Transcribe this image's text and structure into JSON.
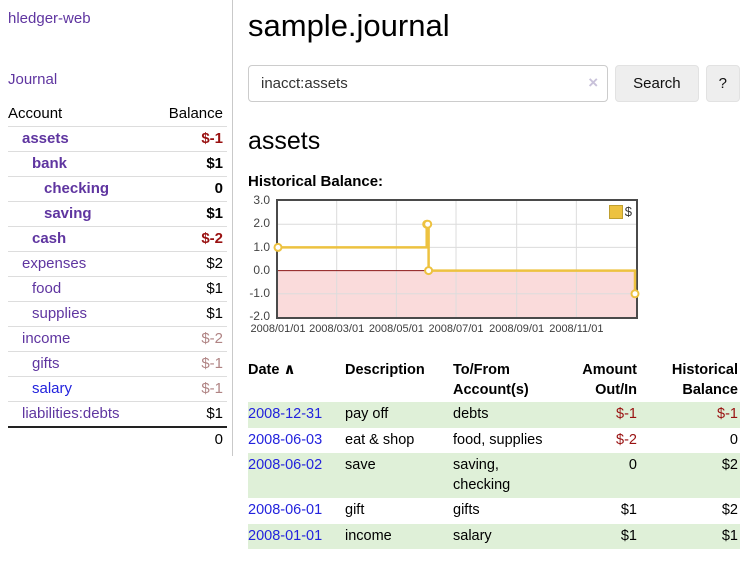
{
  "sidebar": {
    "app_title": "hledger-web",
    "journal_link": "Journal",
    "table": {
      "account_header": "Account",
      "balance_header": "Balance",
      "rows": [
        {
          "account": "assets",
          "balance": "$-1",
          "level": 0,
          "bold": true,
          "neg": "strong",
          "blue": false
        },
        {
          "account": "bank",
          "balance": "$1",
          "level": 1,
          "bold": true,
          "neg": "",
          "blue": false
        },
        {
          "account": "checking",
          "balance": "0",
          "level": 2,
          "bold": true,
          "neg": "",
          "blue": false
        },
        {
          "account": "saving",
          "balance": "$1",
          "level": 2,
          "bold": true,
          "neg": "",
          "blue": false
        },
        {
          "account": "cash",
          "balance": "$-2",
          "level": 1,
          "bold": true,
          "neg": "strong",
          "blue": false
        },
        {
          "account": "expenses",
          "balance": "$2",
          "level": 0,
          "bold": false,
          "neg": "",
          "blue": false
        },
        {
          "account": "food",
          "balance": "$1",
          "level": 1,
          "bold": false,
          "neg": "",
          "blue": false
        },
        {
          "account": "supplies",
          "balance": "$1",
          "level": 1,
          "bold": false,
          "neg": "",
          "blue": false
        },
        {
          "account": "income",
          "balance": "$-2",
          "level": 0,
          "bold": false,
          "neg": "soft",
          "blue": false
        },
        {
          "account": "gifts",
          "balance": "$-1",
          "level": 1,
          "bold": false,
          "neg": "soft",
          "blue": false
        },
        {
          "account": "salary",
          "balance": "$-1",
          "level": 1,
          "bold": false,
          "neg": "soft",
          "blue": true
        },
        {
          "account": "liabilities:debts",
          "balance": "$1",
          "level": 0,
          "bold": false,
          "neg": "",
          "blue": false
        }
      ],
      "total": "0"
    }
  },
  "header": {
    "title": "sample.journal"
  },
  "search": {
    "value": "inacct:assets",
    "clear_icon": "×",
    "button": "Search",
    "help_button": "?"
  },
  "account_page": {
    "heading": "assets",
    "chart_label": "Historical Balance:"
  },
  "chart_data": {
    "type": "line",
    "step": true,
    "title": "Historical Balance:",
    "x_range": [
      "2008-01-01",
      "2009-01-01"
    ],
    "ylim": [
      -2,
      3
    ],
    "yticks": [
      3,
      2,
      1,
      0,
      -1,
      -2
    ],
    "ytick_labels": [
      "3.0",
      "2.0",
      "1.0",
      "0.0",
      "-1.0",
      "-2.0"
    ],
    "xticks": [
      "2008-01-01",
      "2008-03-01",
      "2008-05-01",
      "2008-07-01",
      "2008-09-01",
      "2008-11-01"
    ],
    "xtick_labels": [
      "2008/01/01",
      "2008/03/01",
      "2008/05/01",
      "2008/07/01",
      "2008/09/01",
      "2008/11/01"
    ],
    "grid": true,
    "legend_position": "top-right",
    "series": [
      {
        "name": "$",
        "color": "#edc240",
        "points": [
          {
            "x": "2008-01-01",
            "y": 1
          },
          {
            "x": "2008-06-01",
            "y": 2
          },
          {
            "x": "2008-06-02",
            "y": 2
          },
          {
            "x": "2008-06-03",
            "y": 0
          },
          {
            "x": "2008-12-31",
            "y": -1
          }
        ]
      }
    ]
  },
  "register": {
    "columns": [
      "Date",
      "Description",
      "To/From Account(s)",
      "Amount Out/In",
      "Historical Balance"
    ],
    "sort_icon": "∧",
    "rows": [
      {
        "date": "2008-12-31",
        "description": "pay off",
        "accounts": "debts",
        "amount": "$-1",
        "balance": "$-1"
      },
      {
        "date": "2008-06-03",
        "description": "eat & shop",
        "accounts": "food, supplies",
        "amount": "$-2",
        "balance": "0"
      },
      {
        "date": "2008-06-02",
        "description": "save",
        "accounts": "saving, checking",
        "amount": "0",
        "balance": "$2"
      },
      {
        "date": "2008-06-01",
        "description": "gift",
        "accounts": "gifts",
        "amount": "$1",
        "balance": "$2"
      },
      {
        "date": "2008-01-01",
        "description": "income",
        "accounts": "salary",
        "amount": "$1",
        "balance": "$1"
      }
    ]
  },
  "colors": {
    "link_purple": "#5f35a0",
    "link_blue": "#2323dd",
    "negative_strong": "#991111",
    "negative_soft": "#b08484",
    "row_green": "#dff0d8",
    "series_gold": "#edc240",
    "negative_region_pink": "#fadbdb",
    "zero_line_red": "#8b1515",
    "chart_border": "#4a4a4a"
  }
}
